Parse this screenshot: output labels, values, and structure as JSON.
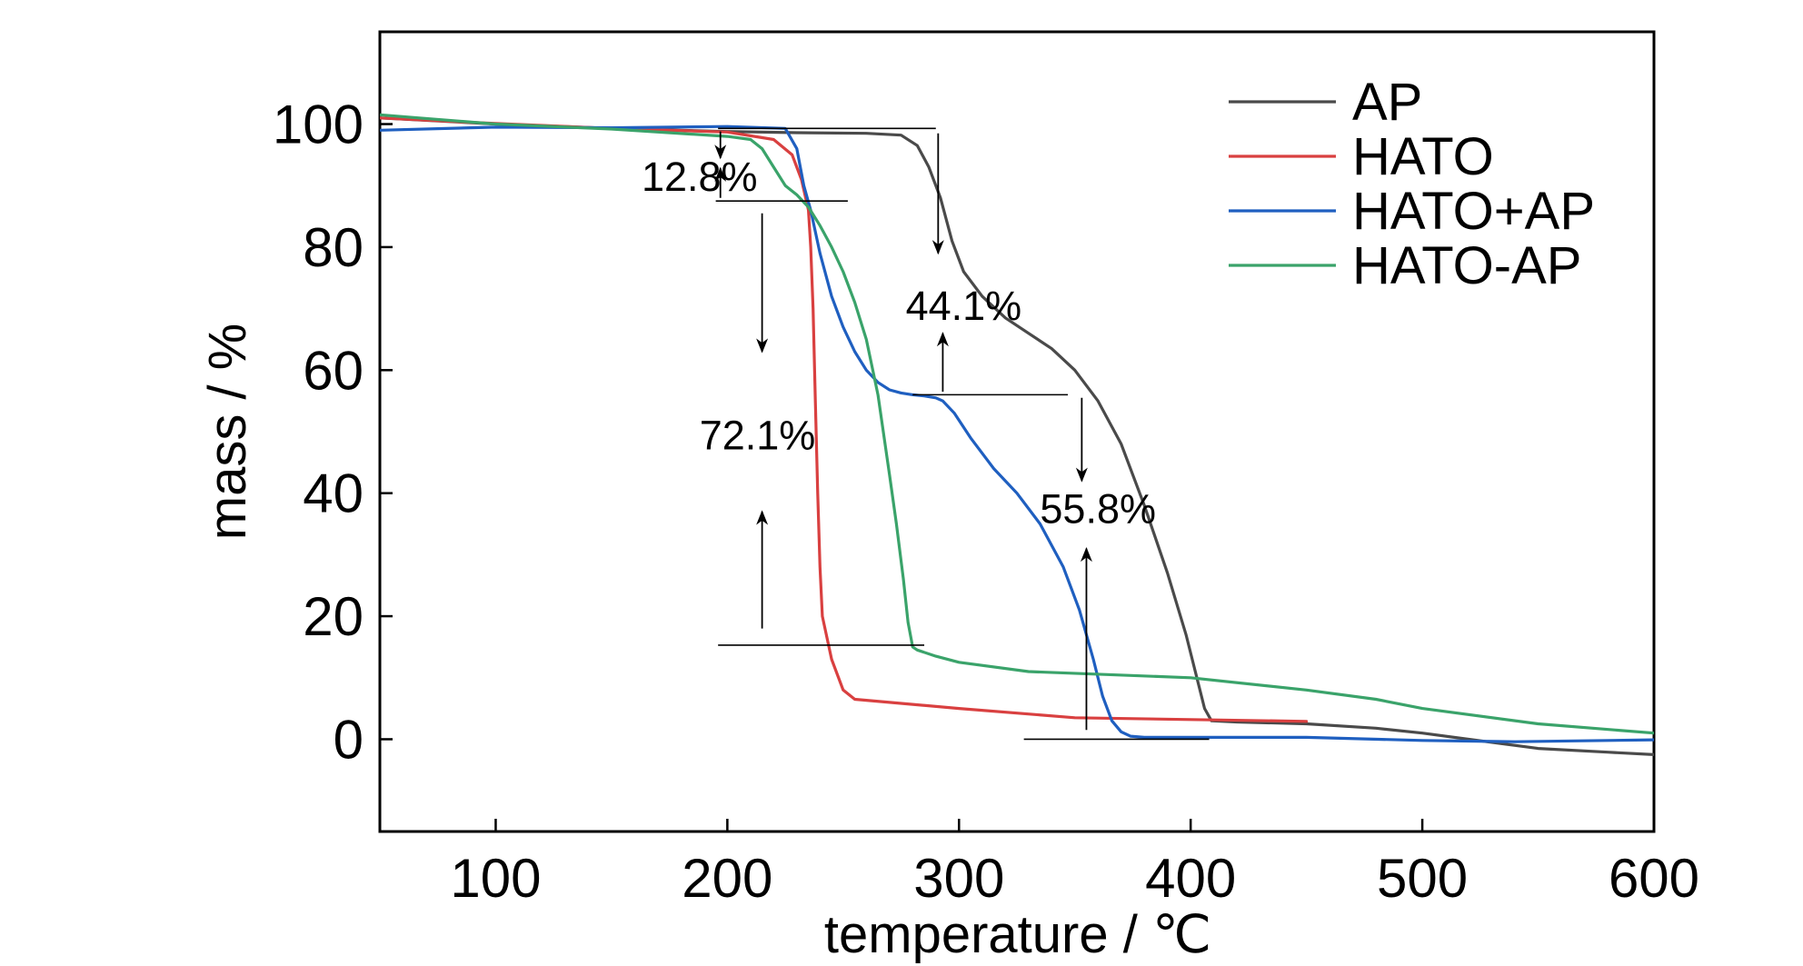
{
  "chart_data": {
    "type": "line",
    "title": "",
    "xlabel": "temperature / ℃",
    "ylabel": "mass / %",
    "xlim": [
      50,
      600
    ],
    "ylim": [
      -15,
      115
    ],
    "xticks": [
      100,
      200,
      300,
      400,
      500,
      600
    ],
    "yticks": [
      0,
      20,
      40,
      60,
      80,
      100
    ],
    "grid": false,
    "legend": "top-right",
    "series": [
      {
        "name": "AP",
        "color": "#4a4a4a",
        "x": [
          50,
          100,
          150,
          200,
          230,
          260,
          275,
          282,
          287,
          292,
          297,
          302,
          310,
          320,
          330,
          340,
          350,
          360,
          370,
          380,
          390,
          398,
          402,
          406,
          409,
          420,
          450,
          480,
          500,
          520,
          550,
          580,
          600
        ],
        "y": [
          101,
          100,
          99.3,
          98.8,
          98.6,
          98.5,
          98.2,
          96.5,
          93,
          88,
          81,
          76,
          72,
          68.5,
          66,
          63.5,
          60,
          55,
          48,
          38,
          27,
          17,
          11,
          5,
          3,
          2.8,
          2.5,
          1.8,
          1.0,
          0,
          -1.5,
          -2.1,
          -2.5
        ]
      },
      {
        "name": "HATO",
        "color": "#d94040",
        "x": [
          50,
          100,
          150,
          200,
          220,
          228,
          232,
          235,
          236,
          237,
          238,
          239,
          240,
          241,
          245,
          250,
          255,
          300,
          350,
          400,
          450
        ],
        "y": [
          101,
          100.1,
          99.3,
          98.7,
          97.5,
          95,
          91,
          86,
          80,
          70,
          55,
          40,
          28,
          20,
          13,
          8,
          6.5,
          5,
          3.5,
          3.2,
          2.9
        ]
      },
      {
        "name": "HATO+AP",
        "color": "#1f5fc0",
        "x": [
          50,
          100,
          150,
          200,
          225,
          230,
          233,
          236,
          240,
          245,
          250,
          255,
          260,
          265,
          270,
          275,
          280,
          285,
          290,
          293,
          298,
          305,
          315,
          325,
          335,
          345,
          352,
          358,
          362,
          366,
          370,
          374,
          380,
          450,
          500,
          540,
          600
        ],
        "y": [
          99,
          99.5,
          99.4,
          99.6,
          99.3,
          96,
          90,
          86,
          79,
          72,
          67,
          63,
          60,
          58,
          56.8,
          56.3,
          56,
          55.8,
          55.5,
          55,
          53,
          49,
          44,
          40,
          35,
          28,
          21,
          13,
          7,
          3,
          1.2,
          0.5,
          0.3,
          0.3,
          -0.2,
          -0.4,
          -0.1
        ]
      },
      {
        "name": "HATO-AP",
        "color": "#3aa36a",
        "x": [
          50,
          100,
          150,
          200,
          210,
          215,
          220,
          225,
          230,
          235,
          240,
          245,
          250,
          255,
          260,
          265,
          270,
          273,
          276,
          278,
          280,
          282,
          290,
          300,
          330,
          400,
          450,
          480,
          500,
          550,
          600
        ],
        "y": [
          101.5,
          100,
          99.2,
          98,
          97.5,
          96,
          93,
          90,
          88.5,
          86.5,
          83.5,
          80,
          76,
          71,
          65,
          56,
          43,
          35,
          26,
          19,
          15,
          14.5,
          13.5,
          12.5,
          11,
          10,
          8,
          6.5,
          5,
          2.5,
          1
        ]
      }
    ],
    "annotations": [
      {
        "label": "12.8%",
        "x": 188,
        "y": 91.5
      },
      {
        "label": "72.1%",
        "x": 213,
        "y": 49.5
      },
      {
        "label": "44.1%",
        "x": 302,
        "y": 70.5
      },
      {
        "label": "55.8%",
        "x": 360,
        "y": 37.5
      }
    ],
    "guide_lines": [
      {
        "x1": 196,
        "x2": 290,
        "y": 99.3
      },
      {
        "x1": 195,
        "x2": 252,
        "y": 87.5
      },
      {
        "x1": 196,
        "x2": 285,
        "y": 15.3
      },
      {
        "x1": 280,
        "x2": 347,
        "y": 56
      },
      {
        "x1": 328,
        "x2": 408,
        "y": 0
      }
    ],
    "arrows": [
      {
        "x": 197,
        "from": 98.8,
        "to": 94.5
      },
      {
        "x": 197,
        "from": 88,
        "to": 92.8
      },
      {
        "x": 215,
        "from": 85.5,
        "to": 63
      },
      {
        "x": 215,
        "from": 18,
        "to": 37
      },
      {
        "x": 291,
        "from": 98.5,
        "to": 79
      },
      {
        "x": 293,
        "from": 56.5,
        "to": 66
      },
      {
        "x": 353,
        "from": 55.5,
        "to": 42
      },
      {
        "x": 355,
        "from": 1.5,
        "to": 31
      }
    ]
  }
}
